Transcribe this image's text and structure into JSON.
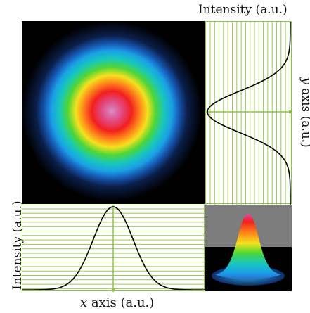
{
  "labels": {
    "top_intensity": "Intensity (a.u.)",
    "left_intensity": "Intensity (a.u.)",
    "x_axis_var": "x",
    "x_axis_rest": " axis (a.u.)",
    "y_axis_var": "y",
    "y_axis_rest": " axis (a.u.)"
  },
  "colors": {
    "grid_line": "#9acb4f",
    "profile_line": "#000000",
    "axis_marker": "#8ac24a",
    "background": "#000000"
  }
}
